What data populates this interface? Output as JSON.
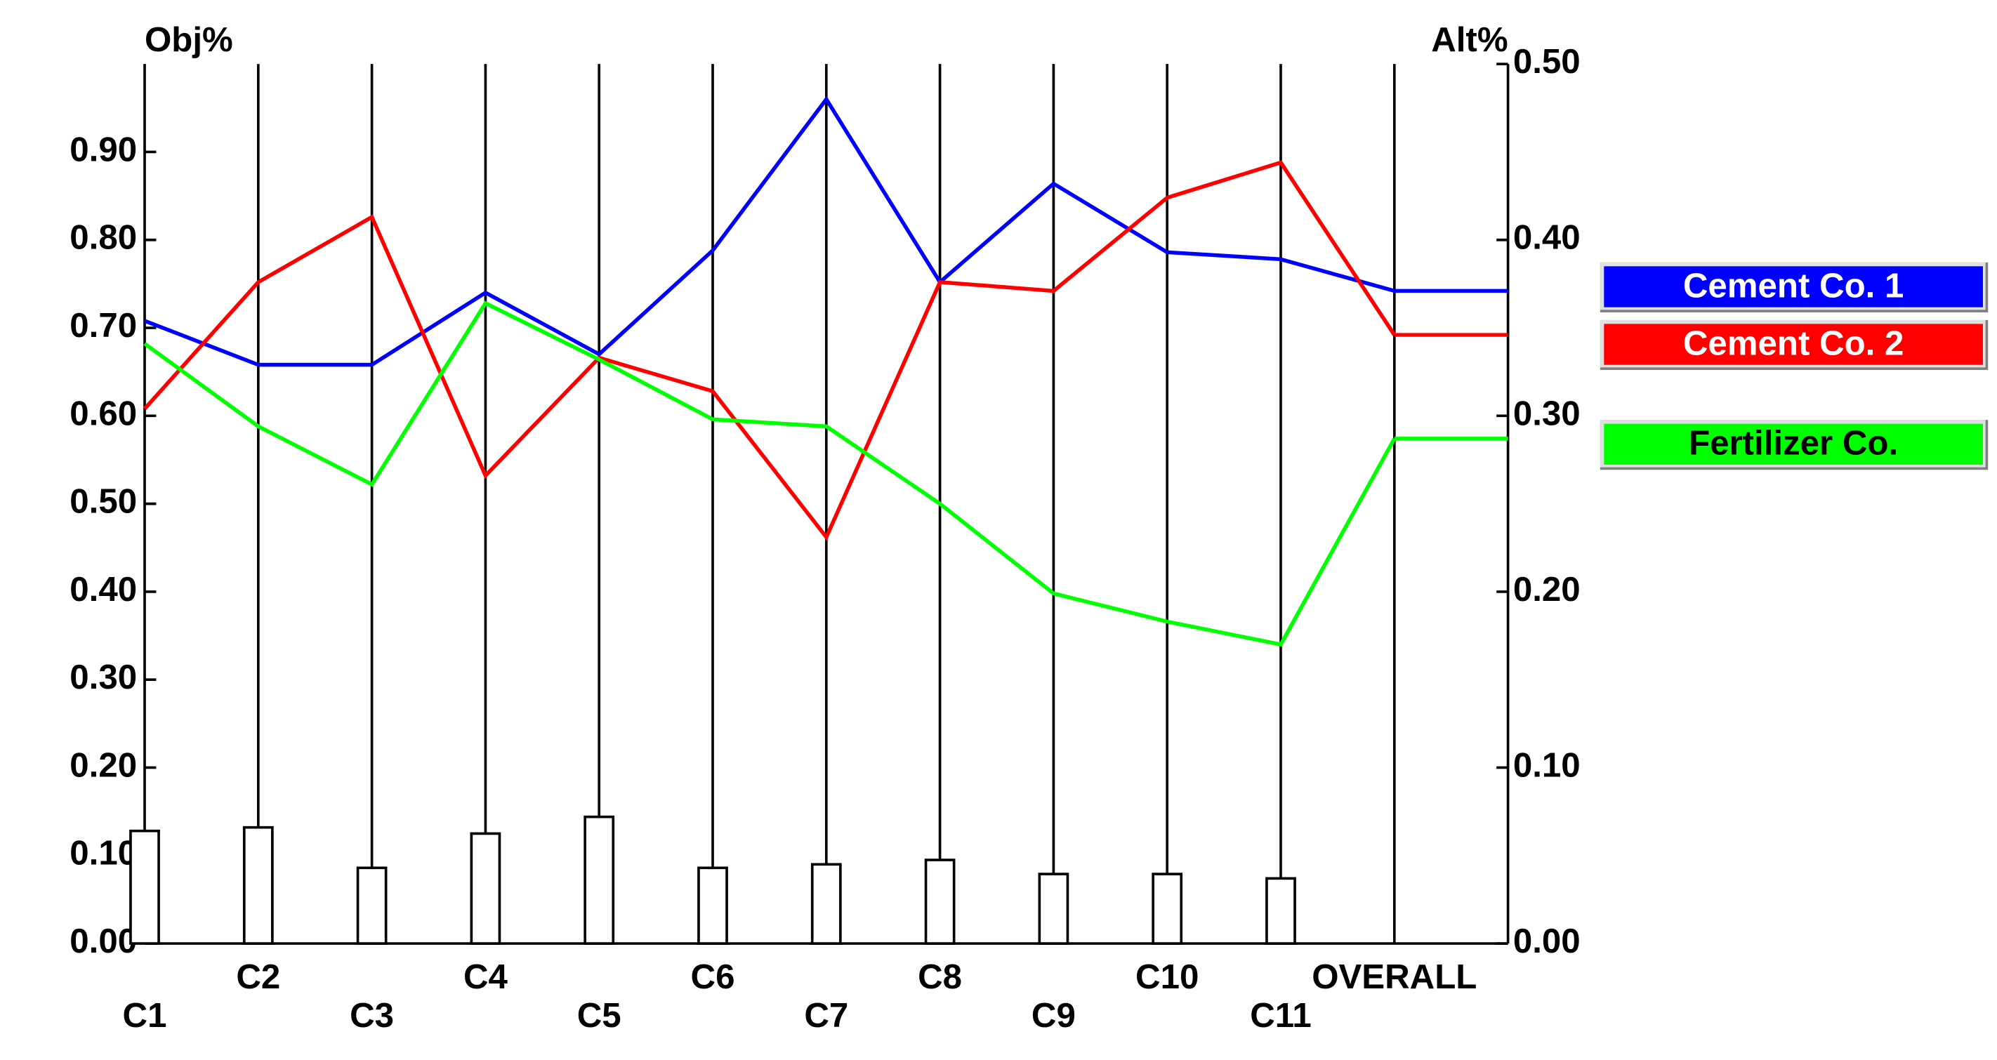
{
  "chart_data": {
    "type": "line",
    "y_label": "Obj%",
    "y2_label": "Alt%",
    "categories": [
      "C1",
      "C2",
      "C3",
      "C4",
      "C5",
      "C6",
      "C7",
      "C8",
      "C9",
      "C10",
      "C11",
      "OVERALL"
    ],
    "ylim": [
      0,
      1
    ],
    "yticks": [
      {
        "value": 0,
        "label": "0.00"
      },
      {
        "value": 0.1,
        "label": "0.10"
      },
      {
        "value": 0.2,
        "label": "0.20"
      },
      {
        "value": 0.3,
        "label": "0.30"
      },
      {
        "value": 0.4,
        "label": "0.40"
      },
      {
        "value": 0.5,
        "label": "0.50"
      },
      {
        "value": 0.6,
        "label": "0.60"
      },
      {
        "value": 0.7,
        "label": "0.70"
      },
      {
        "value": 0.8,
        "label": "0.80"
      },
      {
        "value": 0.9,
        "label": "0.90"
      }
    ],
    "y2lim": [
      0,
      0.5
    ],
    "y2ticks": [
      {
        "value": 0,
        "label": "0.00"
      },
      {
        "value": 0.1,
        "label": "0.10"
      },
      {
        "value": 0.2,
        "label": "0.20"
      },
      {
        "value": 0.3,
        "label": "0.30"
      },
      {
        "value": 0.4,
        "label": "0.40"
      },
      {
        "value": 0.5,
        "label": "0.50"
      }
    ],
    "bars": {
      "color": "#ffffff",
      "values": [
        0.128,
        0.132,
        0.086,
        0.125,
        0.144,
        0.086,
        0.09,
        0.095,
        0.079,
        0.079,
        0.074
      ]
    },
    "series": [
      {
        "name": "Cement Co. 1",
        "color": "#0000ff",
        "axis": "y2",
        "values": [
          0.354,
          0.329,
          0.329,
          0.37,
          0.335,
          0.394,
          0.48,
          0.376,
          0.432,
          0.393,
          0.389,
          0.371
        ]
      },
      {
        "name": "Cement Co. 2",
        "color": "#ff0000",
        "axis": "y2",
        "values": [
          0.304,
          0.376,
          0.413,
          0.266,
          0.333,
          0.314,
          0.231,
          0.376,
          0.371,
          0.424,
          0.444,
          0.346
        ]
      },
      {
        "name": "Fertilizer Co.",
        "color": "#00ff00",
        "axis": "y2",
        "values": [
          0.341,
          0.294,
          0.261,
          0.364,
          0.332,
          0.298,
          0.294,
          0.25,
          0.199,
          0.183,
          0.17,
          0.287
        ]
      }
    ]
  }
}
